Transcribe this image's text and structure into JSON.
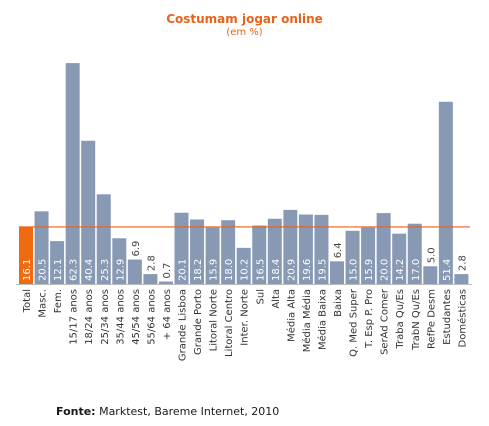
{
  "chart_data": {
    "type": "bar",
    "title": "Costumam jogar online",
    "subtitle": "(em %)",
    "categories": [
      "Total",
      "Masc.",
      "Fem.",
      "15/17 anos",
      "18/24 anos",
      "25/34 anos",
      "35/44 anos",
      "45/54 anos",
      "55/64 anos",
      "+ 64 anos",
      "Grande Lisboa",
      "Grande Porto",
      "Litoral Norte",
      "Litoral Centro",
      "Inter. Norte",
      "Sul",
      "Alta",
      "Média Alta",
      "Média Média",
      "Média Baixa",
      "Baixa",
      "Q. Med Super",
      "T. Esp P. Pro",
      "SerAd Comer",
      "Traba Qu/Es",
      "TrabN Qu/Es",
      "RefPe Desm",
      "Estudantes",
      "Domésticas"
    ],
    "values": [
      16.1,
      20.5,
      12.1,
      62.3,
      40.4,
      25.3,
      12.9,
      6.9,
      2.8,
      0.7,
      20.1,
      18.2,
      15.9,
      18.0,
      10.2,
      16.5,
      18.4,
      20.9,
      19.6,
      19.5,
      6.4,
      15.0,
      15.9,
      20.0,
      14.2,
      17.0,
      5.0,
      51.4,
      2.8
    ],
    "value_labels": [
      "16.1",
      "20.5",
      "12.1",
      "62.3",
      "40.4",
      "25.3",
      "12.9",
      "6.9",
      "2.8",
      "0.7",
      "20.1",
      "18.2",
      "15.9",
      "18.0",
      "10.2",
      "16.5",
      "18.4",
      "20.9",
      "19.6",
      "19.5",
      "6.4",
      "15.0",
      "15.9",
      "20.0",
      "14.2",
      "17.0",
      "5.0",
      "51.4",
      "2.8"
    ],
    "reference_line": 16.1,
    "ylim": [
      0,
      66
    ],
    "grid": false,
    "colors": {
      "bar": "#8899b4",
      "highlight": "#f06a12",
      "line": "#e8621a",
      "label_inside": "#ffffff",
      "label_outside": "#444444"
    }
  },
  "source": {
    "label": "Fonte:",
    "text": "Marktest, Bareme Internet, 2010"
  }
}
